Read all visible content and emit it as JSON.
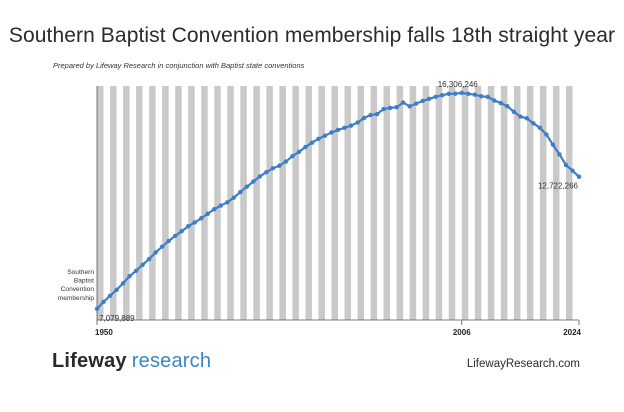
{
  "chart_data": {
    "type": "line",
    "title": "Southern Baptist Convention membership falls 18th straight year",
    "subtitle": "Prepared by Lifeway Research in conjunction with Baptist state conventions",
    "ylabel": "Southern Baptist Convention membership",
    "xlim": [
      1950,
      2024
    ],
    "ylim": [
      6600000,
      16600000
    ],
    "x_ticks": [
      1950,
      2006,
      2024
    ],
    "series": [
      {
        "color": "#3d7ec6",
        "x": [
          1950,
          1951,
          1952,
          1953,
          1954,
          1955,
          1956,
          1957,
          1958,
          1959,
          1960,
          1961,
          1962,
          1963,
          1964,
          1965,
          1966,
          1967,
          1968,
          1969,
          1970,
          1971,
          1972,
          1973,
          1974,
          1975,
          1976,
          1977,
          1978,
          1979,
          1980,
          1981,
          1982,
          1983,
          1984,
          1985,
          1986,
          1987,
          1988,
          1989,
          1990,
          1991,
          1992,
          1993,
          1994,
          1995,
          1996,
          1997,
          1998,
          1999,
          2000,
          2001,
          2002,
          2003,
          2004,
          2005,
          2006,
          2007,
          2008,
          2009,
          2010,
          2011,
          2012,
          2013,
          2014,
          2015,
          2016,
          2017,
          2018,
          2019,
          2020,
          2021,
          2022,
          2023,
          2024
        ],
        "values": [
          7079889,
          7373000,
          7634000,
          7883000,
          8169000,
          8474000,
          8701000,
          8957000,
          9206000,
          9486000,
          9732000,
          9978000,
          10192000,
          10394000,
          10602000,
          10771000,
          10948000,
          11140000,
          11333000,
          11490000,
          11629000,
          11826000,
          12066000,
          12296000,
          12515000,
          12735000,
          12918000,
          13083000,
          13192000,
          13372000,
          13600000,
          13782000,
          13992000,
          14178000,
          14342000,
          14477000,
          14614000,
          14723000,
          14812000,
          14907000,
          15038000,
          15232000,
          15358000,
          15399000,
          15615000,
          15664000,
          15692000,
          15891000,
          15730000,
          15851000,
          15960000,
          16053000,
          16137000,
          16206000,
          16267000,
          16270315,
          16306246,
          16266920,
          16228438,
          16160088,
          16136044,
          15978112,
          15872404,
          15735640,
          15499173,
          15294764,
          15216978,
          15005638,
          14813234,
          14525579,
          14089947,
          13680493,
          13223122,
          12982090,
          12722266
        ]
      }
    ],
    "annotations": {
      "start": "7,079,889",
      "peak": "16,306,246",
      "end": "12,722,266"
    },
    "grid": "alternating vertical stripes, one per year"
  },
  "footer": {
    "brand_bold": "Lifeway",
    "brand_light": "research",
    "site": "LifewayResearch.com"
  },
  "colors": {
    "line": "#3d7ec6",
    "stripe": "#c9c9c9",
    "brand_accent": "#3a86c6"
  }
}
